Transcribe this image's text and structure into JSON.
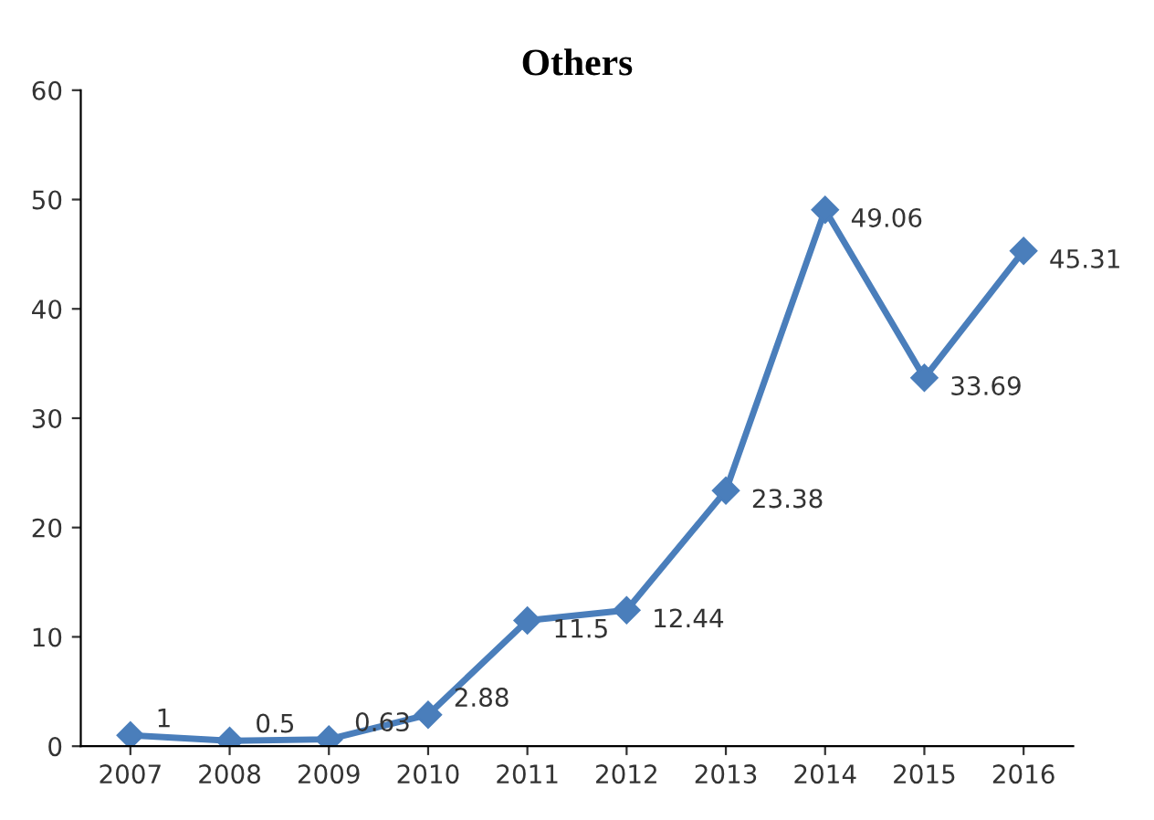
{
  "chart_data": {
    "type": "line",
    "title": "Others",
    "categories": [
      "2007",
      "2008",
      "2009",
      "2010",
      "2011",
      "2012",
      "2013",
      "2014",
      "2015",
      "2016"
    ],
    "values": [
      1,
      0.5,
      0.63,
      2.88,
      11.5,
      12.44,
      23.38,
      49.06,
      33.69,
      45.31
    ],
    "color": "#4a7ebb",
    "marker": "diamond",
    "line_style": "solid",
    "data_labels": true,
    "ylim": [
      0,
      60
    ],
    "yticks": [
      0,
      10,
      20,
      30,
      40,
      50,
      60
    ],
    "grid": false,
    "legend": false
  }
}
